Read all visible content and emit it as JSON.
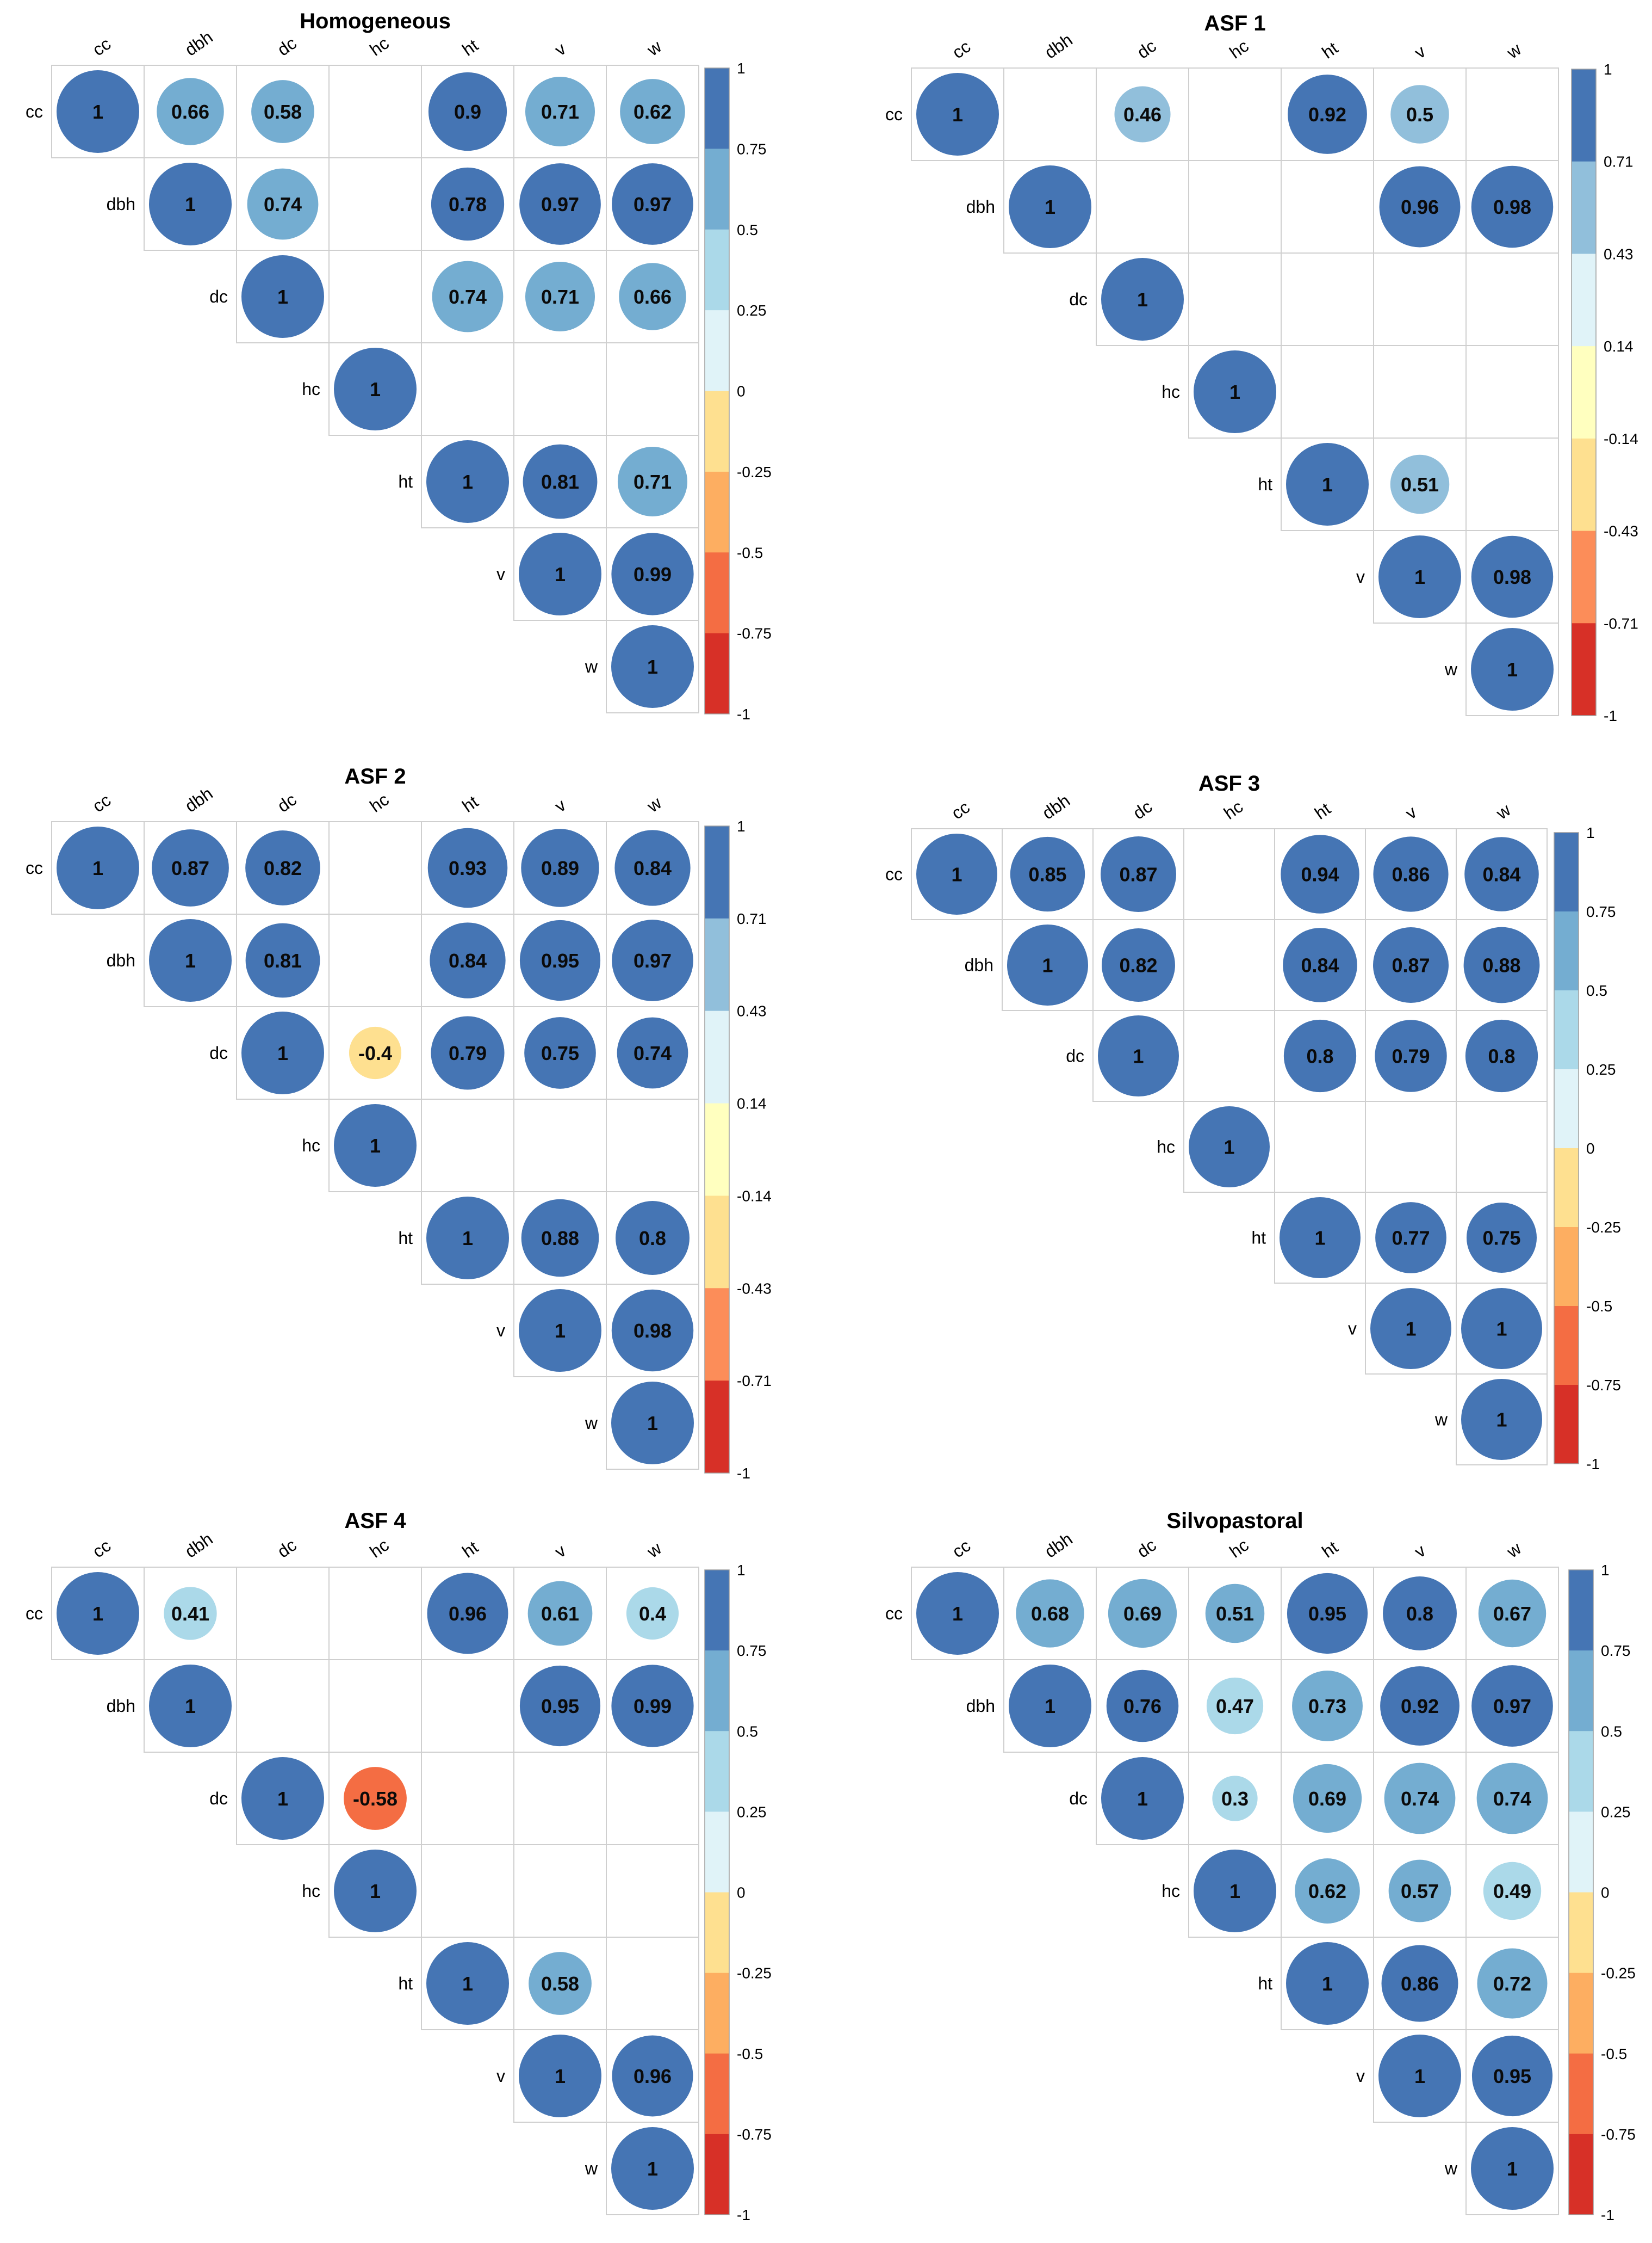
{
  "variables": [
    "cc",
    "dbh",
    "dc",
    "hc",
    "ht",
    "v",
    "w"
  ],
  "chart_data": [
    {
      "type": "heatmap",
      "title": "Homogeneous",
      "legend": {
        "placement": "right",
        "ticks": [
          "1",
          "0.75",
          "0.5",
          "0.25",
          "0",
          "-0.25",
          "-0.5",
          "-0.75",
          "-1"
        ],
        "colors": [
          "#d73027",
          "#f46d43",
          "#fdae61",
          "#fee090",
          "#e0f3f8",
          "#abd9e9",
          "#74add1",
          "#4575b4"
        ]
      },
      "cells": [
        {
          "row": "cc",
          "col": "cc",
          "value": 1,
          "label": "1"
        },
        {
          "row": "cc",
          "col": "dbh",
          "value": 0.66,
          "label": "0.66"
        },
        {
          "row": "cc",
          "col": "dc",
          "value": 0.58,
          "label": "0.58"
        },
        {
          "row": "cc",
          "col": "ht",
          "value": 0.9,
          "label": "0.9"
        },
        {
          "row": "cc",
          "col": "v",
          "value": 0.71,
          "label": "0.71"
        },
        {
          "row": "cc",
          "col": "w",
          "value": 0.62,
          "label": "0.62"
        },
        {
          "row": "dbh",
          "col": "dbh",
          "value": 1,
          "label": "1"
        },
        {
          "row": "dbh",
          "col": "dc",
          "value": 0.74,
          "label": "0.74"
        },
        {
          "row": "dbh",
          "col": "ht",
          "value": 0.78,
          "label": "0.78"
        },
        {
          "row": "dbh",
          "col": "v",
          "value": 0.97,
          "label": "0.97"
        },
        {
          "row": "dbh",
          "col": "w",
          "value": 0.97,
          "label": "0.97"
        },
        {
          "row": "dc",
          "col": "dc",
          "value": 1,
          "label": "1"
        },
        {
          "row": "dc",
          "col": "ht",
          "value": 0.74,
          "label": "0.74"
        },
        {
          "row": "dc",
          "col": "v",
          "value": 0.71,
          "label": "0.71"
        },
        {
          "row": "dc",
          "col": "w",
          "value": 0.66,
          "label": "0.66"
        },
        {
          "row": "hc",
          "col": "hc",
          "value": 1,
          "label": "1"
        },
        {
          "row": "ht",
          "col": "ht",
          "value": 1,
          "label": "1"
        },
        {
          "row": "ht",
          "col": "v",
          "value": 0.81,
          "label": "0.81"
        },
        {
          "row": "ht",
          "col": "w",
          "value": 0.71,
          "label": "0.71"
        },
        {
          "row": "v",
          "col": "v",
          "value": 1,
          "label": "1"
        },
        {
          "row": "v",
          "col": "w",
          "value": 0.99,
          "label": "0.99"
        },
        {
          "row": "w",
          "col": "w",
          "value": 1,
          "label": "1"
        }
      ]
    },
    {
      "type": "heatmap",
      "title": "ASF 1",
      "legend": {
        "placement": "right",
        "ticks": [
          "1",
          "0.71",
          "0.43",
          "0.14",
          "-0.14",
          "-0.43",
          "-0.71",
          "-1"
        ],
        "colors": [
          "#d73027",
          "#fc8d59",
          "#fee090",
          "#ffffbf",
          "#e0f3f8",
          "#91bfdb",
          "#4575b4"
        ]
      },
      "cells": [
        {
          "row": "cc",
          "col": "cc",
          "value": 1,
          "label": "1"
        },
        {
          "row": "cc",
          "col": "dc",
          "value": 0.46,
          "label": "0.46"
        },
        {
          "row": "cc",
          "col": "ht",
          "value": 0.92,
          "label": "0.92"
        },
        {
          "row": "cc",
          "col": "v",
          "value": 0.5,
          "label": "0.5"
        },
        {
          "row": "dbh",
          "col": "dbh",
          "value": 1,
          "label": "1"
        },
        {
          "row": "dbh",
          "col": "v",
          "value": 0.96,
          "label": "0.96"
        },
        {
          "row": "dbh",
          "col": "w",
          "value": 0.98,
          "label": "0.98"
        },
        {
          "row": "dc",
          "col": "dc",
          "value": 1,
          "label": "1"
        },
        {
          "row": "hc",
          "col": "hc",
          "value": 1,
          "label": "1"
        },
        {
          "row": "ht",
          "col": "ht",
          "value": 1,
          "label": "1"
        },
        {
          "row": "ht",
          "col": "v",
          "value": 0.51,
          "label": "0.51"
        },
        {
          "row": "v",
          "col": "v",
          "value": 1,
          "label": "1"
        },
        {
          "row": "v",
          "col": "w",
          "value": 0.98,
          "label": "0.98"
        },
        {
          "row": "w",
          "col": "w",
          "value": 1,
          "label": "1"
        }
      ]
    },
    {
      "type": "heatmap",
      "title": "ASF 2",
      "legend": {
        "placement": "right",
        "ticks": [
          "1",
          "0.71",
          "0.43",
          "0.14",
          "-0.14",
          "-0.43",
          "-0.71",
          "-1"
        ],
        "colors": [
          "#d73027",
          "#fc8d59",
          "#fee090",
          "#ffffbf",
          "#e0f3f8",
          "#91bfdb",
          "#4575b4"
        ]
      },
      "cells": [
        {
          "row": "cc",
          "col": "cc",
          "value": 1,
          "label": "1"
        },
        {
          "row": "cc",
          "col": "dbh",
          "value": 0.87,
          "label": "0.87"
        },
        {
          "row": "cc",
          "col": "dc",
          "value": 0.82,
          "label": "0.82"
        },
        {
          "row": "cc",
          "col": "ht",
          "value": 0.93,
          "label": "0.93"
        },
        {
          "row": "cc",
          "col": "v",
          "value": 0.89,
          "label": "0.89"
        },
        {
          "row": "cc",
          "col": "w",
          "value": 0.84,
          "label": "0.84"
        },
        {
          "row": "dbh",
          "col": "dbh",
          "value": 1,
          "label": "1"
        },
        {
          "row": "dbh",
          "col": "dc",
          "value": 0.81,
          "label": "0.81"
        },
        {
          "row": "dbh",
          "col": "ht",
          "value": 0.84,
          "label": "0.84"
        },
        {
          "row": "dbh",
          "col": "v",
          "value": 0.95,
          "label": "0.95"
        },
        {
          "row": "dbh",
          "col": "w",
          "value": 0.97,
          "label": "0.97"
        },
        {
          "row": "dc",
          "col": "dc",
          "value": 1,
          "label": "1"
        },
        {
          "row": "dc",
          "col": "hc",
          "value": -0.4,
          "label": "-0.4"
        },
        {
          "row": "dc",
          "col": "ht",
          "value": 0.79,
          "label": "0.79"
        },
        {
          "row": "dc",
          "col": "v",
          "value": 0.75,
          "label": "0.75"
        },
        {
          "row": "dc",
          "col": "w",
          "value": 0.74,
          "label": "0.74"
        },
        {
          "row": "hc",
          "col": "hc",
          "value": 1,
          "label": "1"
        },
        {
          "row": "ht",
          "col": "ht",
          "value": 1,
          "label": "1"
        },
        {
          "row": "ht",
          "col": "v",
          "value": 0.88,
          "label": "0.88"
        },
        {
          "row": "ht",
          "col": "w",
          "value": 0.8,
          "label": "0.8"
        },
        {
          "row": "v",
          "col": "v",
          "value": 1,
          "label": "1"
        },
        {
          "row": "v",
          "col": "w",
          "value": 0.98,
          "label": "0.98"
        },
        {
          "row": "w",
          "col": "w",
          "value": 1,
          "label": "1"
        }
      ]
    },
    {
      "type": "heatmap",
      "title": "ASF 3",
      "legend": {
        "placement": "right",
        "ticks": [
          "1",
          "0.75",
          "0.5",
          "0.25",
          "0",
          "-0.25",
          "-0.5",
          "-0.75",
          "-1"
        ],
        "colors": [
          "#d73027",
          "#f46d43",
          "#fdae61",
          "#fee090",
          "#e0f3f8",
          "#abd9e9",
          "#74add1",
          "#4575b4"
        ]
      },
      "cells": [
        {
          "row": "cc",
          "col": "cc",
          "value": 1,
          "label": "1"
        },
        {
          "row": "cc",
          "col": "dbh",
          "value": 0.85,
          "label": "0.85"
        },
        {
          "row": "cc",
          "col": "dc",
          "value": 0.87,
          "label": "0.87"
        },
        {
          "row": "cc",
          "col": "ht",
          "value": 0.94,
          "label": "0.94"
        },
        {
          "row": "cc",
          "col": "v",
          "value": 0.86,
          "label": "0.86"
        },
        {
          "row": "cc",
          "col": "w",
          "value": 0.84,
          "label": "0.84"
        },
        {
          "row": "dbh",
          "col": "dbh",
          "value": 1,
          "label": "1"
        },
        {
          "row": "dbh",
          "col": "dc",
          "value": 0.82,
          "label": "0.82"
        },
        {
          "row": "dbh",
          "col": "ht",
          "value": 0.84,
          "label": "0.84"
        },
        {
          "row": "dbh",
          "col": "v",
          "value": 0.87,
          "label": "0.87"
        },
        {
          "row": "dbh",
          "col": "w",
          "value": 0.88,
          "label": "0.88"
        },
        {
          "row": "dc",
          "col": "dc",
          "value": 1,
          "label": "1"
        },
        {
          "row": "dc",
          "col": "ht",
          "value": 0.8,
          "label": "0.8"
        },
        {
          "row": "dc",
          "col": "v",
          "value": 0.79,
          "label": "0.79"
        },
        {
          "row": "dc",
          "col": "w",
          "value": 0.8,
          "label": "0.8"
        },
        {
          "row": "hc",
          "col": "hc",
          "value": 1,
          "label": "1"
        },
        {
          "row": "ht",
          "col": "ht",
          "value": 1,
          "label": "1"
        },
        {
          "row": "ht",
          "col": "v",
          "value": 0.77,
          "label": "0.77"
        },
        {
          "row": "ht",
          "col": "w",
          "value": 0.75,
          "label": "0.75"
        },
        {
          "row": "v",
          "col": "v",
          "value": 1,
          "label": "1"
        },
        {
          "row": "v",
          "col": "w",
          "value": 1,
          "label": "1"
        },
        {
          "row": "w",
          "col": "w",
          "value": 1,
          "label": "1"
        }
      ]
    },
    {
      "type": "heatmap",
      "title": "ASF 4",
      "legend": {
        "placement": "right",
        "ticks": [
          "1",
          "0.75",
          "0.5",
          "0.25",
          "0",
          "-0.25",
          "-0.5",
          "-0.75",
          "-1"
        ],
        "colors": [
          "#d73027",
          "#f46d43",
          "#fdae61",
          "#fee090",
          "#e0f3f8",
          "#abd9e9",
          "#74add1",
          "#4575b4"
        ]
      },
      "cells": [
        {
          "row": "cc",
          "col": "cc",
          "value": 1,
          "label": "1"
        },
        {
          "row": "cc",
          "col": "dbh",
          "value": 0.41,
          "label": "0.41"
        },
        {
          "row": "cc",
          "col": "ht",
          "value": 0.96,
          "label": "0.96"
        },
        {
          "row": "cc",
          "col": "v",
          "value": 0.61,
          "label": "0.61"
        },
        {
          "row": "cc",
          "col": "w",
          "value": 0.4,
          "label": "0.4"
        },
        {
          "row": "dbh",
          "col": "dbh",
          "value": 1,
          "label": "1"
        },
        {
          "row": "dbh",
          "col": "v",
          "value": 0.95,
          "label": "0.95"
        },
        {
          "row": "dbh",
          "col": "w",
          "value": 0.99,
          "label": "0.99"
        },
        {
          "row": "dc",
          "col": "dc",
          "value": 1,
          "label": "1"
        },
        {
          "row": "dc",
          "col": "hc",
          "value": -0.58,
          "label": "-0.58"
        },
        {
          "row": "hc",
          "col": "hc",
          "value": 1,
          "label": "1"
        },
        {
          "row": "ht",
          "col": "ht",
          "value": 1,
          "label": "1"
        },
        {
          "row": "ht",
          "col": "v",
          "value": 0.58,
          "label": "0.58"
        },
        {
          "row": "v",
          "col": "v",
          "value": 1,
          "label": "1"
        },
        {
          "row": "v",
          "col": "w",
          "value": 0.96,
          "label": "0.96"
        },
        {
          "row": "w",
          "col": "w",
          "value": 1,
          "label": "1"
        }
      ]
    },
    {
      "type": "heatmap",
      "title": "Silvopastoral",
      "legend": {
        "placement": "right",
        "ticks": [
          "1",
          "0.75",
          "0.5",
          "0.25",
          "0",
          "-0.25",
          "-0.5",
          "-0.75",
          "-1"
        ],
        "colors": [
          "#d73027",
          "#f46d43",
          "#fdae61",
          "#fee090",
          "#e0f3f8",
          "#abd9e9",
          "#74add1",
          "#4575b4"
        ]
      },
      "cells": [
        {
          "row": "cc",
          "col": "cc",
          "value": 1,
          "label": "1"
        },
        {
          "row": "cc",
          "col": "dbh",
          "value": 0.68,
          "label": "0.68"
        },
        {
          "row": "cc",
          "col": "dc",
          "value": 0.69,
          "label": "0.69"
        },
        {
          "row": "cc",
          "col": "hc",
          "value": 0.51,
          "label": "0.51"
        },
        {
          "row": "cc",
          "col": "ht",
          "value": 0.95,
          "label": "0.95"
        },
        {
          "row": "cc",
          "col": "v",
          "value": 0.8,
          "label": "0.8"
        },
        {
          "row": "cc",
          "col": "w",
          "value": 0.67,
          "label": "0.67"
        },
        {
          "row": "dbh",
          "col": "dbh",
          "value": 1,
          "label": "1"
        },
        {
          "row": "dbh",
          "col": "dc",
          "value": 0.76,
          "label": "0.76"
        },
        {
          "row": "dbh",
          "col": "hc",
          "value": 0.47,
          "label": "0.47"
        },
        {
          "row": "dbh",
          "col": "ht",
          "value": 0.73,
          "label": "0.73"
        },
        {
          "row": "dbh",
          "col": "v",
          "value": 0.92,
          "label": "0.92"
        },
        {
          "row": "dbh",
          "col": "w",
          "value": 0.97,
          "label": "0.97"
        },
        {
          "row": "dc",
          "col": "dc",
          "value": 1,
          "label": "1"
        },
        {
          "row": "dc",
          "col": "hc",
          "value": 0.3,
          "label": "0.3"
        },
        {
          "row": "dc",
          "col": "ht",
          "value": 0.69,
          "label": "0.69"
        },
        {
          "row": "dc",
          "col": "v",
          "value": 0.74,
          "label": "0.74"
        },
        {
          "row": "dc",
          "col": "w",
          "value": 0.74,
          "label": "0.74"
        },
        {
          "row": "hc",
          "col": "hc",
          "value": 1,
          "label": "1"
        },
        {
          "row": "hc",
          "col": "ht",
          "value": 0.62,
          "label": "0.62"
        },
        {
          "row": "hc",
          "col": "v",
          "value": 0.57,
          "label": "0.57"
        },
        {
          "row": "hc",
          "col": "w",
          "value": 0.49,
          "label": "0.49"
        },
        {
          "row": "ht",
          "col": "ht",
          "value": 1,
          "label": "1"
        },
        {
          "row": "ht",
          "col": "v",
          "value": 0.86,
          "label": "0.86"
        },
        {
          "row": "ht",
          "col": "w",
          "value": 0.72,
          "label": "0.72"
        },
        {
          "row": "v",
          "col": "v",
          "value": 1,
          "label": "1"
        },
        {
          "row": "v",
          "col": "w",
          "value": 0.95,
          "label": "0.95"
        },
        {
          "row": "w",
          "col": "w",
          "value": 1,
          "label": "1"
        }
      ]
    }
  ]
}
